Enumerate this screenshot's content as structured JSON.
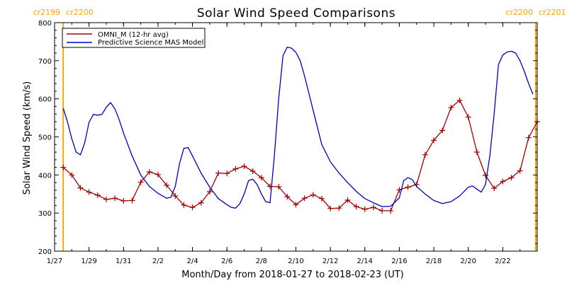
{
  "chart_data": {
    "type": "line",
    "title": "Solar Wind Speed Comparisons",
    "xlabel": "Month/Day from 2018-01-27 to 2018-02-23 (UT)",
    "ylabel": "Solar Wind Speed (km/s)",
    "ylim": [
      200,
      800
    ],
    "yticks": [
      200,
      300,
      400,
      500,
      600,
      700,
      800
    ],
    "xlim": [
      "2018-01-27",
      "2018-02-24"
    ],
    "xticks": [
      {
        "date": "2018-01-27",
        "label": "1/27"
      },
      {
        "date": "2018-01-29",
        "label": "1/29"
      },
      {
        "date": "2018-01-31",
        "label": "1/31"
      },
      {
        "date": "2018-02-02",
        "label": "2/2"
      },
      {
        "date": "2018-02-04",
        "label": "2/4"
      },
      {
        "date": "2018-02-06",
        "label": "2/6"
      },
      {
        "date": "2018-02-08",
        "label": "2/8"
      },
      {
        "date": "2018-02-10",
        "label": "2/10"
      },
      {
        "date": "2018-02-12",
        "label": "2/12"
      },
      {
        "date": "2018-02-14",
        "label": "2/14"
      },
      {
        "date": "2018-02-16",
        "label": "2/16"
      },
      {
        "date": "2018-02-18",
        "label": "2/18"
      },
      {
        "date": "2018-02-20",
        "label": "2/20"
      },
      {
        "date": "2018-02-22",
        "label": "2/22"
      }
    ],
    "carrington_markers": [
      {
        "date": "2018-01-27 12:00",
        "label_left": "cr2199",
        "label_right": "cr2200",
        "position": "top-left"
      },
      {
        "date": "2018-02-23 22:00",
        "label_left": "cr2200",
        "label_right": "cr2201",
        "position": "top-right"
      }
    ],
    "legend": {
      "position": "top-left"
    },
    "series": [
      {
        "name": "OMNI_M (12-hr avg)",
        "color": "#a00000",
        "markers": "plus",
        "points": [
          [
            "2018-01-27 12:00",
            420
          ],
          [
            "2018-01-28 00:00",
            400
          ],
          [
            "2018-01-28 12:00",
            366
          ],
          [
            "2018-01-29 00:00",
            355
          ],
          [
            "2018-01-29 12:00",
            347
          ],
          [
            "2018-01-30 00:00",
            336
          ],
          [
            "2018-01-30 12:00",
            339
          ],
          [
            "2018-01-31 00:00",
            332
          ],
          [
            "2018-01-31 12:00",
            333
          ],
          [
            "2018-02-01 00:00",
            381
          ],
          [
            "2018-02-01 12:00",
            408
          ],
          [
            "2018-02-02 00:00",
            401
          ],
          [
            "2018-02-02 12:00",
            373
          ],
          [
            "2018-02-03 00:00",
            345
          ],
          [
            "2018-02-03 12:00",
            321
          ],
          [
            "2018-02-04 00:00",
            315
          ],
          [
            "2018-02-04 12:00",
            327
          ],
          [
            "2018-02-05 00:00",
            356
          ],
          [
            "2018-02-05 12:00",
            405
          ],
          [
            "2018-02-06 00:00",
            404
          ],
          [
            "2018-02-06 12:00",
            416
          ],
          [
            "2018-02-07 00:00",
            423
          ],
          [
            "2018-02-07 12:00",
            410
          ],
          [
            "2018-02-08 00:00",
            393
          ],
          [
            "2018-02-08 12:00",
            370
          ],
          [
            "2018-02-09 00:00",
            369
          ],
          [
            "2018-02-09 12:00",
            343
          ],
          [
            "2018-02-10 00:00",
            322
          ],
          [
            "2018-02-10 12:00",
            339
          ],
          [
            "2018-02-11 00:00",
            348
          ],
          [
            "2018-02-11 12:00",
            338
          ],
          [
            "2018-02-12 00:00",
            312
          ],
          [
            "2018-02-12 12:00",
            313
          ],
          [
            "2018-02-13 00:00",
            334
          ],
          [
            "2018-02-13 12:00",
            317
          ],
          [
            "2018-02-14 00:00",
            310
          ],
          [
            "2018-02-14 12:00",
            315
          ],
          [
            "2018-02-15 00:00",
            306
          ],
          [
            "2018-02-15 12:00",
            306
          ],
          [
            "2018-02-16 00:00",
            361
          ],
          [
            "2018-02-16 12:00",
            368
          ],
          [
            "2018-02-17 00:00",
            375
          ],
          [
            "2018-02-17 12:00",
            453
          ],
          [
            "2018-02-18 00:00",
            491
          ],
          [
            "2018-02-18 12:00",
            517
          ],
          [
            "2018-02-19 00:00",
            577
          ],
          [
            "2018-02-19 12:00",
            596
          ],
          [
            "2018-02-20 00:00",
            552
          ],
          [
            "2018-02-20 12:00",
            460
          ],
          [
            "2018-02-21 00:00",
            399
          ],
          [
            "2018-02-21 12:00",
            365
          ],
          [
            "2018-02-22 00:00",
            383
          ],
          [
            "2018-02-22 12:00",
            393
          ],
          [
            "2018-02-23 00:00",
            411
          ],
          [
            "2018-02-23 12:00",
            498
          ],
          [
            "2018-02-24 00:00",
            540
          ]
        ]
      },
      {
        "name": "Predictive Science MAS Model",
        "color": "#0000c0",
        "markers": "none",
        "points": [
          [
            "2018-01-27 12:00",
            575
          ],
          [
            "2018-01-27 18:00",
            540
          ],
          [
            "2018-01-28 00:00",
            495
          ],
          [
            "2018-01-28 06:00",
            460
          ],
          [
            "2018-01-28 12:00",
            453
          ],
          [
            "2018-01-28 18:00",
            485
          ],
          [
            "2018-01-29 00:00",
            538
          ],
          [
            "2018-01-29 06:00",
            559
          ],
          [
            "2018-01-29 12:00",
            557
          ],
          [
            "2018-01-29 18:00",
            559
          ],
          [
            "2018-01-30 00:00",
            578
          ],
          [
            "2018-01-30 06:00",
            590
          ],
          [
            "2018-01-30 12:00",
            574
          ],
          [
            "2018-01-30 18:00",
            545
          ],
          [
            "2018-01-31 00:00",
            510
          ],
          [
            "2018-01-31 12:00",
            450
          ],
          [
            "2018-02-01 00:00",
            400
          ],
          [
            "2018-02-01 12:00",
            370
          ],
          [
            "2018-02-02 00:00",
            352
          ],
          [
            "2018-02-02 12:00",
            339
          ],
          [
            "2018-02-02 18:00",
            342
          ],
          [
            "2018-02-03 00:00",
            370
          ],
          [
            "2018-02-03 06:00",
            430
          ],
          [
            "2018-02-03 12:00",
            470
          ],
          [
            "2018-02-03 18:00",
            472
          ],
          [
            "2018-02-04 00:00",
            450
          ],
          [
            "2018-02-04 12:00",
            405
          ],
          [
            "2018-02-05 00:00",
            368
          ],
          [
            "2018-02-05 12:00",
            338
          ],
          [
            "2018-02-06 00:00",
            322
          ],
          [
            "2018-02-06 06:00",
            315
          ],
          [
            "2018-02-06 12:00",
            313
          ],
          [
            "2018-02-06 18:00",
            325
          ],
          [
            "2018-02-07 00:00",
            350
          ],
          [
            "2018-02-07 06:00",
            385
          ],
          [
            "2018-02-07 12:00",
            389
          ],
          [
            "2018-02-07 18:00",
            375
          ],
          [
            "2018-02-08 00:00",
            350
          ],
          [
            "2018-02-08 06:00",
            330
          ],
          [
            "2018-02-08 12:00",
            327
          ],
          [
            "2018-02-08 18:00",
            450
          ],
          [
            "2018-02-09 00:00",
            600
          ],
          [
            "2018-02-09 06:00",
            713
          ],
          [
            "2018-02-09 12:00",
            736
          ],
          [
            "2018-02-09 18:00",
            733
          ],
          [
            "2018-02-10 00:00",
            722
          ],
          [
            "2018-02-10 06:00",
            700
          ],
          [
            "2018-02-10 12:00",
            660
          ],
          [
            "2018-02-11 00:00",
            570
          ],
          [
            "2018-02-11 12:00",
            480
          ],
          [
            "2018-02-12 00:00",
            435
          ],
          [
            "2018-02-12 12:00",
            405
          ],
          [
            "2018-02-13 00:00",
            380
          ],
          [
            "2018-02-13 12:00",
            357
          ],
          [
            "2018-02-14 00:00",
            338
          ],
          [
            "2018-02-14 12:00",
            327
          ],
          [
            "2018-02-15 00:00",
            317
          ],
          [
            "2018-02-15 12:00",
            318
          ],
          [
            "2018-02-16 00:00",
            340
          ],
          [
            "2018-02-16 06:00",
            385
          ],
          [
            "2018-02-16 12:00",
            393
          ],
          [
            "2018-02-16 18:00",
            388
          ],
          [
            "2018-02-17 00:00",
            370
          ],
          [
            "2018-02-17 12:00",
            350
          ],
          [
            "2018-02-18 00:00",
            333
          ],
          [
            "2018-02-18 12:00",
            325
          ],
          [
            "2018-02-19 00:00",
            330
          ],
          [
            "2018-02-19 12:00",
            345
          ],
          [
            "2018-02-20 00:00",
            368
          ],
          [
            "2018-02-20 06:00",
            371
          ],
          [
            "2018-02-20 12:00",
            363
          ],
          [
            "2018-02-20 18:00",
            355
          ],
          [
            "2018-02-21 00:00",
            375
          ],
          [
            "2018-02-21 06:00",
            450
          ],
          [
            "2018-02-21 12:00",
            560
          ],
          [
            "2018-02-21 18:00",
            690
          ],
          [
            "2018-02-22 00:00",
            715
          ],
          [
            "2018-02-22 06:00",
            723
          ],
          [
            "2018-02-22 12:00",
            725
          ],
          [
            "2018-02-22 18:00",
            720
          ],
          [
            "2018-02-23 00:00",
            700
          ],
          [
            "2018-02-23 06:00",
            672
          ],
          [
            "2018-02-23 12:00",
            640
          ],
          [
            "2018-02-23 18:00",
            612
          ]
        ]
      }
    ]
  }
}
